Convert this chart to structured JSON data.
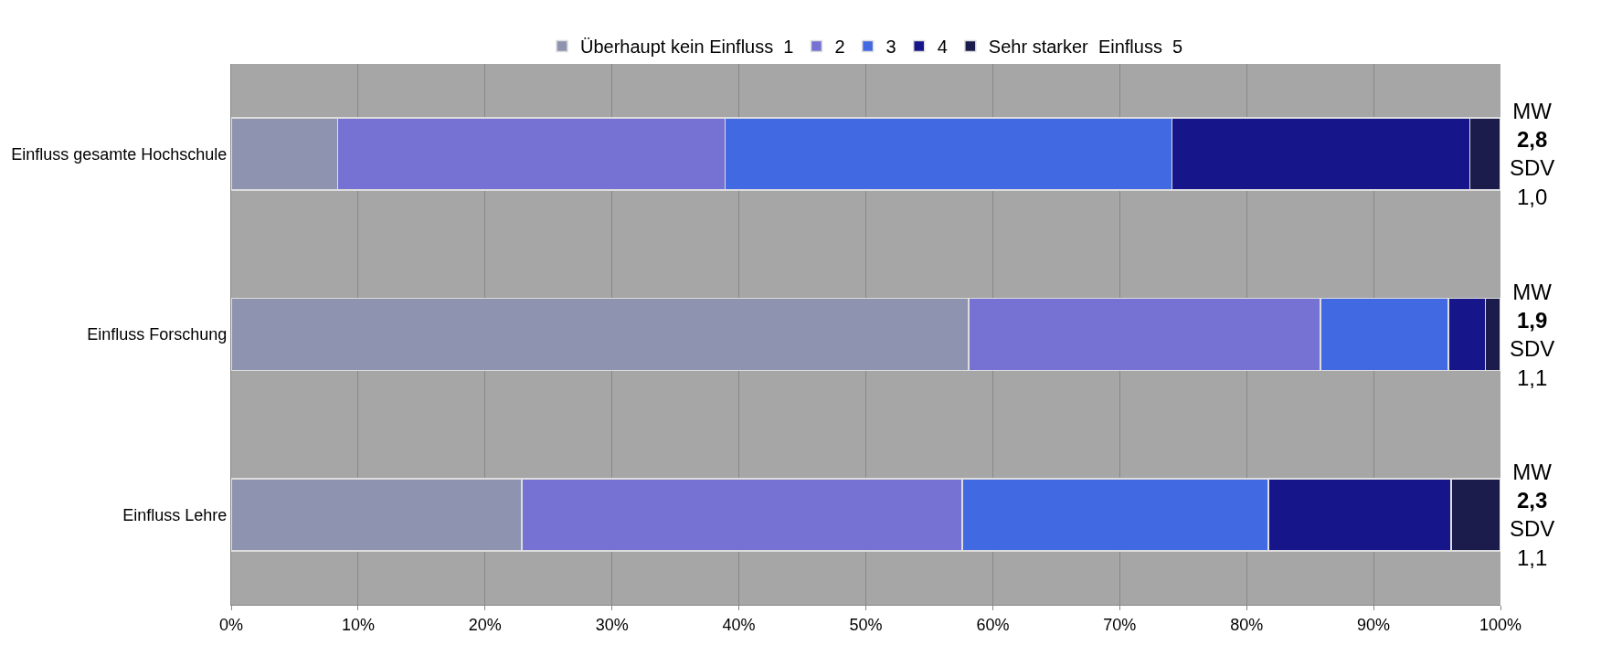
{
  "chart_data": {
    "type": "bar",
    "orientation": "horizontal",
    "stacked": true,
    "categories": [
      "Einfluss gesamte Hochschule",
      "Einfluss Forschung",
      "Einfluss Lehre"
    ],
    "series": [
      {
        "name": "Überhaupt kein Einfluss  1",
        "color": "#8e94b0",
        "values": [
          8.4,
          58.1,
          22.9
        ]
      },
      {
        "name": "2",
        "color": "#7672d4",
        "values": [
          30.5,
          27.7,
          34.7
        ]
      },
      {
        "name": "3",
        "color": "#4169e1",
        "values": [
          35.2,
          10.1,
          24.1
        ]
      },
      {
        "name": "4",
        "color": "#16168a",
        "values": [
          23.5,
          2.9,
          14.4
        ]
      },
      {
        "name": "Sehr starker  Einfluss  5",
        "color": "#1c1c4c",
        "values": [
          2.4,
          1.2,
          3.9
        ]
      }
    ],
    "xlim": [
      0,
      100
    ],
    "xticks": [
      {
        "value": 0,
        "label": "0%"
      },
      {
        "value": 10,
        "label": "10%"
      },
      {
        "value": 20,
        "label": "20%"
      },
      {
        "value": 30,
        "label": "30%"
      },
      {
        "value": 40,
        "label": "40%"
      },
      {
        "value": 50,
        "label": "50%"
      },
      {
        "value": 60,
        "label": "60%"
      },
      {
        "value": 70,
        "label": "70%"
      },
      {
        "value": 80,
        "label": "80%"
      },
      {
        "value": 90,
        "label": "90%"
      },
      {
        "value": 100,
        "label": "100%"
      }
    ],
    "grid": "x",
    "legend": "top",
    "annotations": [
      "MW\n2,8\nSDV\n1,0",
      "MW\n1,9\nSDV\n1,1",
      "MW\n2,3\nSDV\n1,1"
    ]
  }
}
